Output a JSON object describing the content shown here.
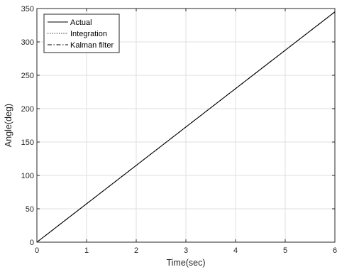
{
  "chart_data": {
    "type": "line",
    "title": "",
    "xlabel": "Time(sec)",
    "ylabel": "Angle(deg)",
    "xlim": [
      0,
      6
    ],
    "ylim": [
      0,
      350
    ],
    "xticks": [
      0,
      1,
      2,
      3,
      4,
      5,
      6
    ],
    "yticks": [
      0,
      50,
      100,
      150,
      200,
      250,
      300,
      350
    ],
    "grid": true,
    "legend_position": "top-left",
    "series": [
      {
        "name": "Actual",
        "style": "solid",
        "color": "#000000",
        "x": [
          0,
          6
        ],
        "y": [
          0,
          345
        ]
      },
      {
        "name": "Integration",
        "style": "dotted",
        "color": "#000000",
        "x": [
          0,
          6
        ],
        "y": [
          0,
          345
        ]
      },
      {
        "name": "Kalman filter",
        "style": "dashdot",
        "color": "#000000",
        "x": [
          0,
          6
        ],
        "y": [
          0,
          345
        ]
      }
    ]
  }
}
